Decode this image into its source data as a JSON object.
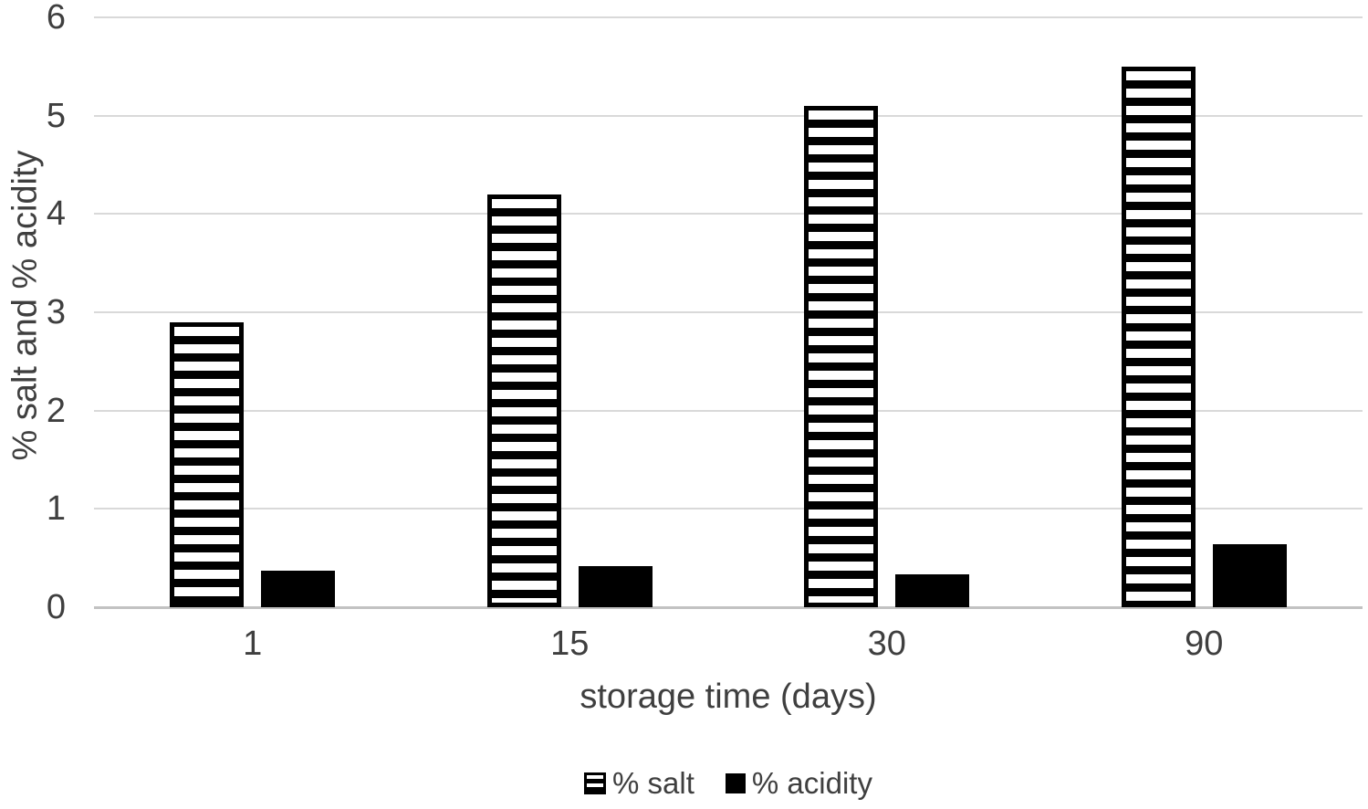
{
  "chart_data": {
    "type": "bar",
    "categories": [
      "1",
      "15",
      "30",
      "90"
    ],
    "series": [
      {
        "name": "% salt",
        "style": "horizontal-stripes",
        "values": [
          2.9,
          4.2,
          5.1,
          5.5
        ]
      },
      {
        "name": "% acidity",
        "style": "solid",
        "values": [
          0.37,
          0.42,
          0.33,
          0.64
        ]
      }
    ],
    "xlabel": "storage time (days)",
    "ylabel": "% salt and % acidity",
    "ylim": [
      0,
      6
    ],
    "yticks": [
      0,
      1,
      2,
      3,
      4,
      5,
      6
    ],
    "grid": true,
    "legend_position": "bottom-center",
    "colors": {
      "bar_fill": "#000000",
      "stripe_fill": "#ffffff",
      "text": "#3f3f3f",
      "gridline": "#d9d9d9",
      "axis_line": "#c2c2c2",
      "background": "#ffffff"
    }
  }
}
